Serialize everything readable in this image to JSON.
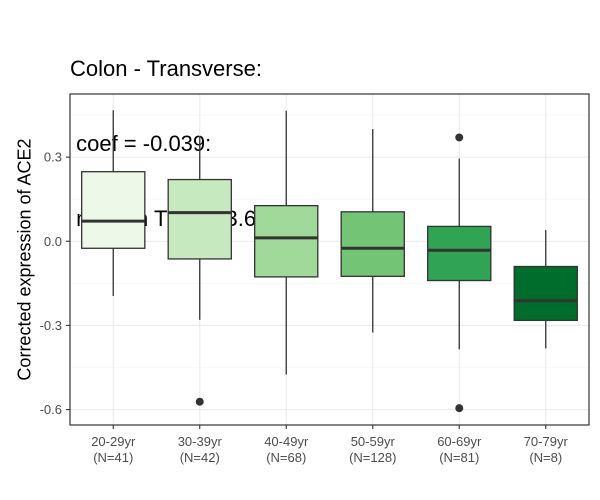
{
  "chart_data": {
    "type": "boxplot",
    "title_lines": [
      "Colon - Transverse:",
      " coef = -0.039:",
      " median TPM = 3.629"
    ],
    "xlabel": "",
    "ylabel": "Corrected expression of ACE2",
    "ylim": [
      -0.655,
      0.525
    ],
    "yticks": [
      0.3,
      0.0,
      -0.3,
      -0.6
    ],
    "ytick_labels": [
      "0.3",
      "0.0",
      "-0.3",
      "-0.6"
    ],
    "grid": true,
    "categories": [
      {
        "label": "20-29yr",
        "n_label": "(N=41)"
      },
      {
        "label": "30-39yr",
        "n_label": "(N=42)"
      },
      {
        "label": "40-49yr",
        "n_label": "(N=68)"
      },
      {
        "label": "50-59yr",
        "n_label": "(N=128)"
      },
      {
        "label": "60-69yr",
        "n_label": "(N=81)"
      },
      {
        "label": "70-79yr",
        "n_label": "(N=8)"
      }
    ],
    "boxes": [
      {
        "whisker_low": -0.195,
        "q1": -0.025,
        "median": 0.072,
        "q3": 0.248,
        "whisker_high": 0.467,
        "outliers": [],
        "color": "#edf8e9"
      },
      {
        "whisker_low": -0.28,
        "q1": -0.063,
        "median": 0.102,
        "q3": 0.22,
        "whisker_high": 0.375,
        "outliers": [
          -0.572
        ],
        "color": "#c7e9c0"
      },
      {
        "whisker_low": -0.475,
        "q1": -0.127,
        "median": 0.012,
        "q3": 0.127,
        "whisker_high": 0.465,
        "outliers": [],
        "color": "#a1d99b"
      },
      {
        "whisker_low": -0.325,
        "q1": -0.125,
        "median": -0.025,
        "q3": 0.105,
        "whisker_high": 0.4,
        "outliers": [],
        "color": "#74c476"
      },
      {
        "whisker_low": -0.385,
        "q1": -0.14,
        "median": -0.032,
        "q3": 0.053,
        "whisker_high": 0.295,
        "outliers": [
          0.37,
          -0.595
        ],
        "color": "#31a354"
      },
      {
        "whisker_low": -0.382,
        "q1": -0.282,
        "median": -0.212,
        "q3": -0.09,
        "whisker_high": 0.04,
        "outliers": [],
        "color": "#006d2c"
      }
    ],
    "colors": {
      "box_outline": "#333333",
      "grid_major": "#ebebeb",
      "grid_minor": "#f4f4f4",
      "panel_border": "#333333"
    }
  }
}
